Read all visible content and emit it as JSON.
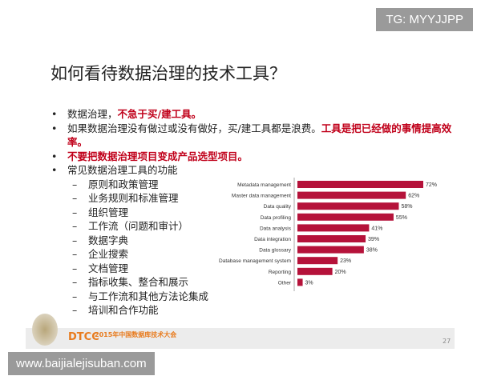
{
  "watermarks": {
    "top": "TG: MYYJJPP",
    "bottom": "www.baijialejisuban.com"
  },
  "slide": {
    "title": "如何看待数据治理的技术工具？",
    "bullets": [
      {
        "pre": "数据治理，",
        "red": "不急于买/建工具。",
        "post": ""
      },
      {
        "pre": "如果数据治理没有做过或没有做好，买/建工具都是浪费。",
        "red": "工具是把已经做的事情提高效率。",
        "post": ""
      },
      {
        "pre": "",
        "red": "不要把数据治理项目变成产品选型项目。",
        "post": ""
      },
      {
        "pre": "常见数据治理工具的功能",
        "red": "",
        "post": ""
      }
    ],
    "sub_items": [
      "原则和政策管理",
      "业务规则和标准管理",
      "组织管理",
      "工作流（问题和审计）",
      "数据字典",
      "企业搜索",
      "文档管理",
      "指标收集、整合和展示",
      "与工作流和其他方法论集成",
      "培训和合作功能"
    ],
    "footer": {
      "brand": "DTCC",
      "conference": "2015年中国数据库技术大会",
      "page": "27"
    }
  },
  "chart_data": {
    "type": "bar",
    "orientation": "horizontal",
    "categories": [
      "Metadata management",
      "Master data management",
      "Data quality",
      "Data profiling",
      "Data analysis",
      "Data integration",
      "Data glossary",
      "Database management system",
      "Reporting",
      "Other"
    ],
    "values": [
      72,
      62,
      58,
      55,
      41,
      39,
      38,
      23,
      20,
      3
    ],
    "value_labels": [
      "72%",
      "62%",
      "58%",
      "55%",
      "41%",
      "39%",
      "38%",
      "23%",
      "20%",
      "3%"
    ],
    "unit": "%",
    "color": "#b5123a",
    "xlim": [
      0,
      100
    ],
    "grid": false
  }
}
